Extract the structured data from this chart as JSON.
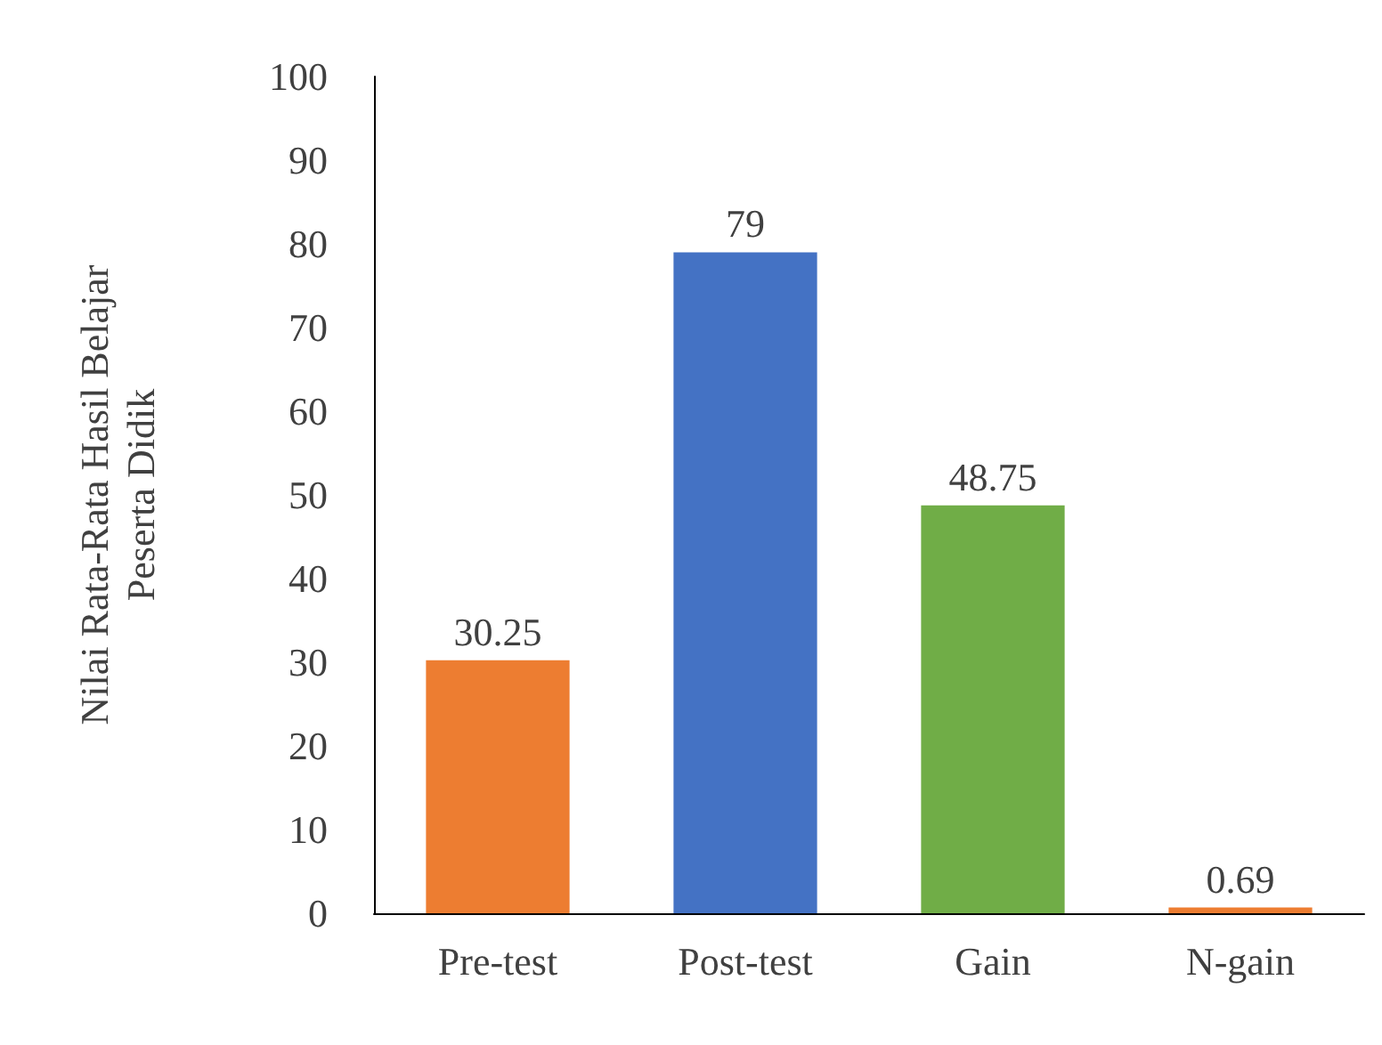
{
  "chart_data": {
    "type": "bar",
    "ylabel": "Nilai Rata-Rata Hasil Belajar\nPeserta Didik",
    "categories": [
      "Pre-test",
      "Post-test",
      "Gain",
      "N-gain"
    ],
    "values": [
      30.25,
      79,
      48.75,
      0.69
    ],
    "colors": [
      "#ed7d31",
      "#4472c4",
      "#70ad47",
      "#ed7d31"
    ],
    "ylim": [
      0,
      100
    ],
    "yticks": [
      0,
      10,
      20,
      30,
      40,
      50,
      60,
      70,
      80,
      90,
      100
    ],
    "grid": false,
    "data_labels": true
  }
}
